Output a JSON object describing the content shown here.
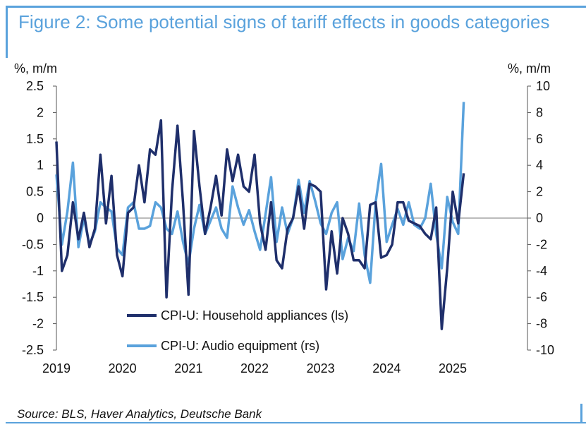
{
  "title": "Figure 2: Some potential signs of tariff effects in goods categories",
  "source": "Source: BLS, Haver Analytics, Deutsche Bank",
  "colors": {
    "accent": "#5aa2dc",
    "series_dark": "#1f2f6b",
    "series_light": "#5aa2dc"
  },
  "chart_data": {
    "type": "line",
    "left_axis_unit": "%, m/m",
    "right_axis_unit": "%, m/m",
    "ylim_left": [
      -2.5,
      2.5
    ],
    "ylim_right": [
      -10,
      10
    ],
    "yticks_left": [
      "2.5",
      "2",
      "1.5",
      "1",
      "0.5",
      "0",
      "-0.5",
      "-1",
      "-1.5",
      "-2",
      "-2.5"
    ],
    "yticks_right": [
      "10",
      "8",
      "6",
      "4",
      "2",
      "0",
      "-2",
      "-4",
      "-6",
      "-8",
      "-10"
    ],
    "xtick_labels": [
      "2019",
      "2020",
      "2021",
      "2022",
      "2023",
      "2024",
      "2025"
    ],
    "x_start": "2019-01",
    "legend_placement": "bottom-center",
    "series": [
      {
        "name": "CPI-U: Household appliances (ls)",
        "axis": "left",
        "values": [
          1.45,
          -1.0,
          -0.7,
          0.3,
          -0.4,
          0.1,
          -0.55,
          -0.2,
          1.2,
          -0.1,
          0.8,
          -0.7,
          -1.1,
          0.1,
          0.2,
          1.0,
          0.3,
          1.3,
          1.2,
          1.85,
          -1.5,
          0.5,
          1.75,
          0.3,
          -1.45,
          1.65,
          0.6,
          -0.3,
          0.2,
          0.8,
          0.05,
          1.3,
          0.7,
          1.2,
          0.6,
          0.5,
          1.2,
          -0.1,
          -0.6,
          0.3,
          -0.8,
          -0.95,
          -0.2,
          0.0,
          0.6,
          -0.2,
          0.65,
          0.6,
          0.5,
          -1.35,
          -0.25,
          -1.05,
          0.0,
          -0.3,
          -0.8,
          -0.8,
          -0.95,
          0.25,
          0.3,
          -0.75,
          -0.7,
          -0.5,
          0.3,
          0.3,
          -0.05,
          -0.1,
          -0.15,
          -0.3,
          -0.4,
          0.2,
          -2.1,
          -0.95,
          0.5,
          -0.1,
          0.85
        ]
      },
      {
        "name": "CPI-U: Audio equipment (rs)",
        "axis": "right",
        "values": [
          3.3,
          -2.0,
          0.5,
          4.2,
          -2.2,
          0.0,
          -2.0,
          -1.0,
          1.2,
          0.8,
          0.5,
          -2.3,
          -2.8,
          0.8,
          1.2,
          -0.8,
          -0.8,
          -0.6,
          1.2,
          0.8,
          -0.8,
          -1.2,
          0.5,
          -1.8,
          -3.5,
          -0.8,
          1.0,
          -1.2,
          -0.2,
          0.8,
          -0.8,
          -1.5,
          2.4,
          0.8,
          -0.5,
          0.6,
          -1.0,
          -2.4,
          0.3,
          3.1,
          -1.8,
          0.8,
          -1.2,
          0.0,
          2.9,
          0.4,
          2.8,
          1.3,
          -0.4,
          -1.2,
          0.4,
          1.2,
          -3.1,
          -1.5,
          -2.5,
          1.1,
          -2.8,
          -4.9,
          1.2,
          4.1,
          -1.8,
          -0.5,
          0.7,
          -0.5,
          1.2,
          -0.5,
          -0.8,
          0.0,
          2.6,
          -1.2,
          -3.8,
          1.6,
          -0.3,
          -1.2,
          8.8
        ]
      }
    ]
  }
}
